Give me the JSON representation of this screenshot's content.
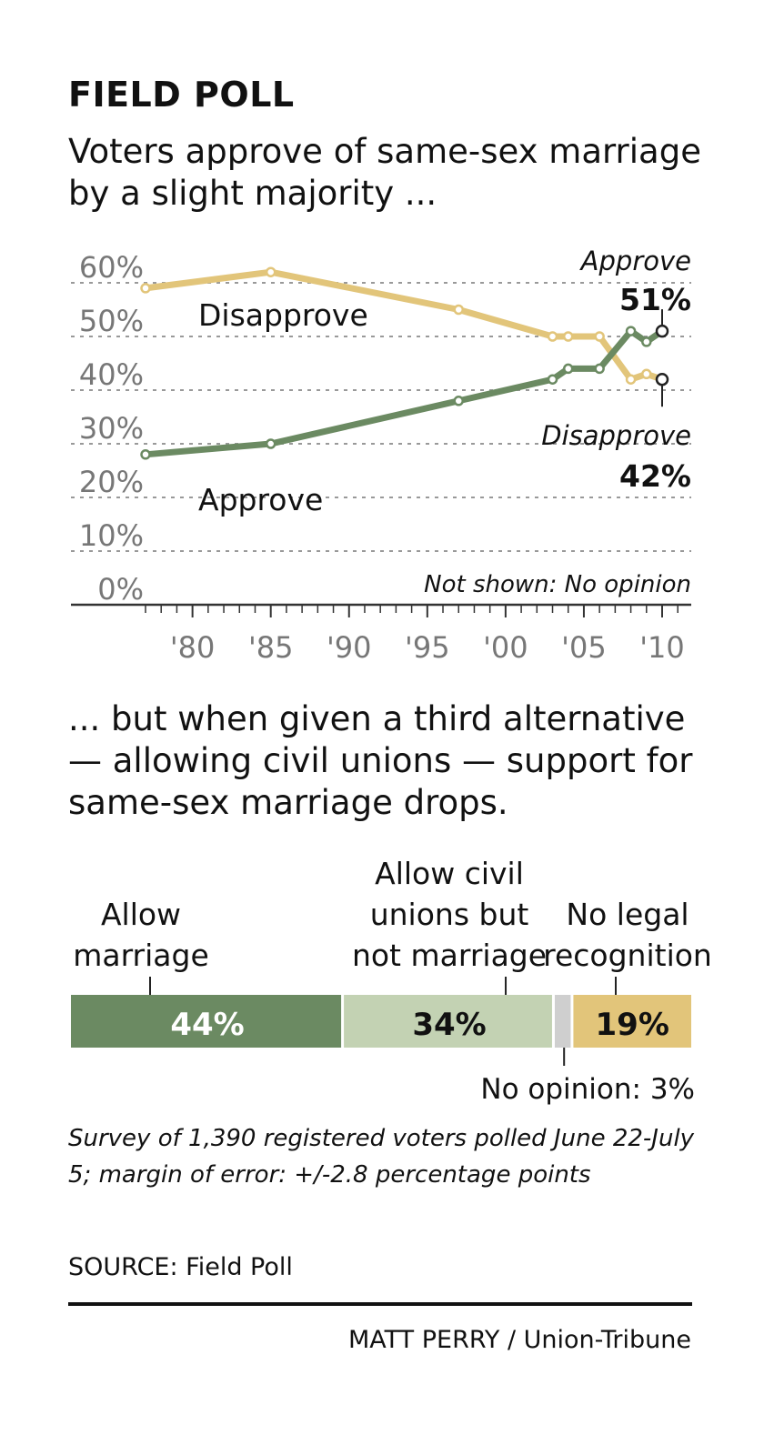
{
  "kicker": "FIELD POLL",
  "headline_top": "Voters approve of same-sex marriage by a slight majority ...",
  "headline_bottom": "... but when given a third alternative — allowing civil unions — support for same-sex marriage drops.",
  "colors": {
    "approve": "#6b8a62",
    "disapprove": "#e2c57a",
    "civil_unions": "#c3d2b3",
    "no_opinion": "#cfcfcf",
    "gridline": "#999999"
  },
  "chart_data": [
    {
      "type": "line",
      "ylim": [
        0,
        60
      ],
      "y_ticks": [
        "0%",
        "10%",
        "20%",
        "30%",
        "40%",
        "50%",
        "60%"
      ],
      "x_ticks": [
        "'80",
        "'85",
        "'90",
        "'95",
        "'00",
        "'05",
        "'10"
      ],
      "x_range": [
        1977,
        2010
      ],
      "grid": true,
      "series": [
        {
          "name": "Disapprove",
          "x": [
            1977,
            1985,
            1997,
            2003,
            2004,
            2006,
            2008,
            2009,
            2010
          ],
          "values": [
            59,
            62,
            55,
            50,
            50,
            50,
            42,
            43,
            42
          ]
        },
        {
          "name": "Approve",
          "x": [
            1977,
            1985,
            1997,
            2003,
            2004,
            2006,
            2008,
            2009,
            2010
          ],
          "values": [
            28,
            30,
            38,
            42,
            44,
            44,
            51,
            49,
            51
          ]
        }
      ],
      "annotations": {
        "approve_label": "Approve",
        "approve_value": "51%",
        "disapprove_label": "Disapprove",
        "disapprove_value": "42%",
        "not_shown": "Not shown: No opinion"
      }
    },
    {
      "type": "bar",
      "stacked": true,
      "categories": [
        "Allow marriage",
        "Allow civil unions but not marriage",
        "No opinion",
        "No legal recognition"
      ],
      "values": [
        44,
        34,
        3,
        19
      ],
      "value_labels": [
        "44%",
        "34%",
        "",
        "19%"
      ],
      "label_lines": [
        [
          "Allow",
          "marriage"
        ],
        [
          "Allow civil",
          "unions but",
          "not marriage"
        ],
        [],
        [
          "No legal",
          "recognition"
        ]
      ],
      "no_opinion_note": "No opinion: 3%"
    }
  ],
  "footnote": "Survey of 1,390 registered voters polled June 22-July 5; margin of error: +/-2.8 percentage points",
  "source": "SOURCE: Field Poll",
  "credit": "MATT PERRY / Union-Tribune"
}
